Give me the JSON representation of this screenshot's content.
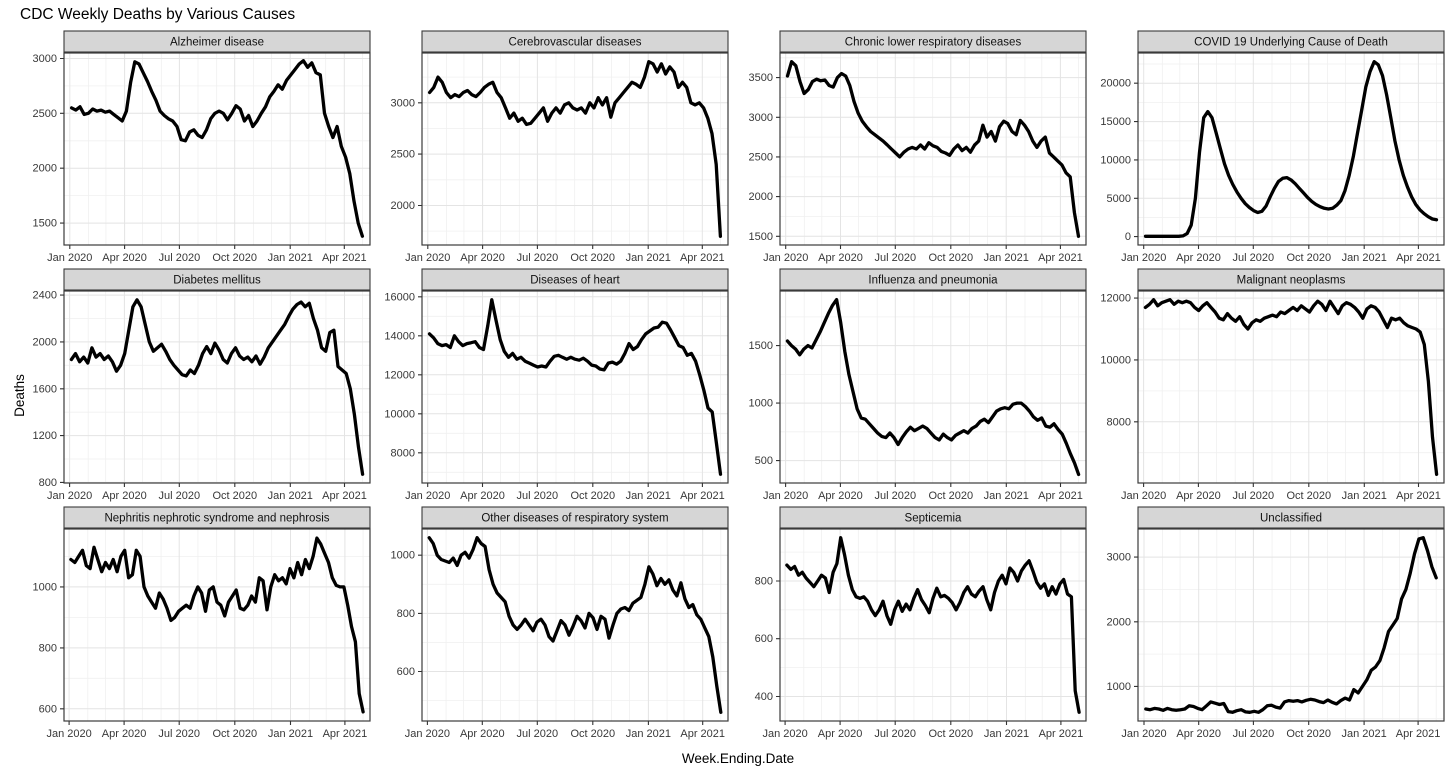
{
  "page_title": "CDC Weekly Deaths by Various Causes",
  "axes": {
    "x_title": "Week.Ending.Date",
    "y_title": "Deaths",
    "x_tick_labels": [
      "Jan 2020",
      "Apr 2020",
      "Jul 2020",
      "Oct 2020",
      "Jan 2021",
      "Apr 2021"
    ]
  },
  "style": {
    "line_color": "#000000",
    "strip_bg": "#d6d6d6",
    "panel_border": "#3b3b3b",
    "grid_major": "#e4e4e4",
    "grid_minor": "#f0f0f0",
    "tick_color": "#333333"
  },
  "chart_data": {
    "type": "line",
    "title": "CDC Weekly Deaths by Various Causes",
    "xlabel": "Week.Ending.Date",
    "ylabel": "Deaths",
    "x_unit": "weekly points, Jan 2020 through late Apr 2021",
    "x_tick_labels": [
      "Jan 2020",
      "Apr 2020",
      "Jul 2020",
      "Oct 2020",
      "Jan 2021",
      "Apr 2021"
    ],
    "panels": [
      {
        "title": "Alzheimer disease",
        "yticks": [
          1500,
          2000,
          2500,
          3000
        ],
        "ylim": [
          1300,
          3050
        ],
        "values": [
          2550,
          2530,
          2560,
          2490,
          2500,
          2540,
          2520,
          2530,
          2510,
          2520,
          2490,
          2460,
          2430,
          2520,
          2780,
          2970,
          2950,
          2870,
          2790,
          2700,
          2620,
          2520,
          2480,
          2450,
          2430,
          2380,
          2260,
          2250,
          2330,
          2350,
          2300,
          2280,
          2350,
          2450,
          2500,
          2520,
          2500,
          2440,
          2500,
          2570,
          2540,
          2430,
          2480,
          2380,
          2430,
          2500,
          2560,
          2650,
          2700,
          2760,
          2720,
          2800,
          2850,
          2900,
          2950,
          2980,
          2920,
          2960,
          2870,
          2850,
          2500,
          2380,
          2280,
          2380,
          2200,
          2100,
          1950,
          1700,
          1500,
          1380
        ]
      },
      {
        "title": "Cerebrovascular diseases",
        "yticks": [
          2000,
          2500,
          3000
        ],
        "ylim": [
          1615,
          3485
        ],
        "values": [
          3100,
          3150,
          3250,
          3200,
          3100,
          3050,
          3080,
          3060,
          3100,
          3120,
          3080,
          3060,
          3100,
          3150,
          3180,
          3200,
          3100,
          3050,
          2950,
          2850,
          2900,
          2820,
          2850,
          2790,
          2800,
          2850,
          2900,
          2950,
          2820,
          2900,
          2950,
          2900,
          2980,
          3000,
          2950,
          2930,
          2950,
          2900,
          3000,
          2950,
          3050,
          2980,
          3050,
          2860,
          3000,
          3050,
          3100,
          3150,
          3200,
          3180,
          3150,
          3250,
          3400,
          3380,
          3300,
          3380,
          3280,
          3350,
          3300,
          3150,
          3200,
          3150,
          3000,
          2980,
          3000,
          2950,
          2850,
          2700,
          2400,
          1700
        ]
      },
      {
        "title": "Chronic lower respiratory diseases",
        "yticks": [
          1500,
          2000,
          2500,
          3000,
          3500
        ],
        "ylim": [
          1390,
          3810
        ],
        "values": [
          3520,
          3700,
          3650,
          3450,
          3300,
          3350,
          3450,
          3480,
          3460,
          3470,
          3400,
          3380,
          3500,
          3550,
          3520,
          3400,
          3200,
          3050,
          2950,
          2880,
          2820,
          2780,
          2740,
          2700,
          2650,
          2600,
          2550,
          2500,
          2560,
          2600,
          2620,
          2600,
          2650,
          2600,
          2680,
          2640,
          2620,
          2570,
          2550,
          2520,
          2600,
          2650,
          2580,
          2620,
          2560,
          2650,
          2700,
          2900,
          2750,
          2820,
          2700,
          2880,
          2950,
          2920,
          2820,
          2780,
          2960,
          2900,
          2820,
          2700,
          2620,
          2700,
          2750,
          2550,
          2500,
          2450,
          2400,
          2300,
          2250,
          1800,
          1500
        ]
      },
      {
        "title": "COVID 19 Underlying Cause of Death",
        "yticks": [
          0,
          5000,
          10000,
          15000,
          20000
        ],
        "ylim": [
          -1090,
          23940
        ],
        "values": [
          50,
          50,
          50,
          50,
          50,
          50,
          50,
          50,
          50,
          100,
          400,
          1500,
          5000,
          11000,
          15500,
          16300,
          15500,
          13500,
          11500,
          9500,
          8000,
          6800,
          5800,
          5000,
          4300,
          3800,
          3400,
          3150,
          3300,
          4000,
          5200,
          6300,
          7200,
          7600,
          7700,
          7400,
          6900,
          6300,
          5700,
          5100,
          4600,
          4200,
          3900,
          3700,
          3600,
          3700,
          4100,
          4700,
          6000,
          8000,
          10500,
          13500,
          16500,
          19500,
          21500,
          22800,
          22400,
          21000,
          18500,
          15500,
          12500,
          10000,
          8000,
          6500,
          5200,
          4200,
          3500,
          3000,
          2600,
          2300,
          2200
        ]
      },
      {
        "title": "Diabetes mellitus",
        "yticks": [
          800,
          1200,
          1600,
          2000,
          2400
        ],
        "ylim": [
          795,
          2435
        ],
        "values": [
          1850,
          1900,
          1830,
          1870,
          1820,
          1950,
          1870,
          1900,
          1850,
          1880,
          1830,
          1750,
          1800,
          1900,
          2100,
          2300,
          2360,
          2300,
          2150,
          2000,
          1920,
          1950,
          1980,
          1920,
          1850,
          1800,
          1760,
          1720,
          1710,
          1760,
          1730,
          1800,
          1900,
          1960,
          1900,
          1990,
          1930,
          1850,
          1820,
          1900,
          1950,
          1880,
          1850,
          1870,
          1830,
          1880,
          1810,
          1870,
          1950,
          2000,
          2050,
          2100,
          2150,
          2220,
          2280,
          2320,
          2340,
          2300,
          2330,
          2200,
          2100,
          1950,
          1920,
          2080,
          2100,
          1790,
          1760,
          1730,
          1600,
          1380,
          1100,
          870
        ]
      },
      {
        "title": "Diseases of heart",
        "yticks": [
          8000,
          10000,
          12000,
          14000,
          16000
        ],
        "ylim": [
          6450,
          16300
        ],
        "values": [
          14100,
          13900,
          13600,
          13500,
          13550,
          13400,
          14000,
          13700,
          13500,
          13600,
          13650,
          13700,
          13400,
          13300,
          14500,
          15850,
          14800,
          13800,
          13200,
          12900,
          13100,
          12800,
          12900,
          12700,
          12600,
          12500,
          12400,
          12450,
          12400,
          12700,
          12950,
          13000,
          12900,
          12800,
          12900,
          12800,
          12750,
          12850,
          12700,
          12500,
          12450,
          12300,
          12250,
          12600,
          12650,
          12550,
          12700,
          13100,
          13600,
          13300,
          13450,
          13800,
          14100,
          14250,
          14400,
          14450,
          14700,
          14650,
          14300,
          13900,
          13500,
          13400,
          13000,
          13100,
          12700,
          12000,
          11200,
          10300,
          10100,
          8500,
          6900
        ]
      },
      {
        "title": "Influenza and pneumonia",
        "yticks": [
          500,
          1000,
          1500
        ],
        "ylim": [
          305,
          1975
        ],
        "values": [
          1540,
          1500,
          1470,
          1420,
          1470,
          1500,
          1480,
          1550,
          1620,
          1700,
          1780,
          1850,
          1900,
          1700,
          1450,
          1250,
          1100,
          950,
          870,
          860,
          820,
          780,
          740,
          710,
          700,
          740,
          700,
          640,
          700,
          750,
          790,
          760,
          780,
          800,
          780,
          740,
          700,
          680,
          730,
          700,
          680,
          720,
          740,
          760,
          740,
          780,
          800,
          840,
          860,
          830,
          880,
          930,
          950,
          960,
          950,
          990,
          1000,
          1000,
          970,
          930,
          880,
          850,
          870,
          800,
          790,
          820,
          770,
          730,
          650,
          560,
          480,
          380
        ]
      },
      {
        "title": "Malignant neoplasms",
        "yticks": [
          8000,
          10000,
          12000
        ],
        "ylim": [
          6020,
          12230
        ],
        "values": [
          11700,
          11800,
          11950,
          11750,
          11850,
          11900,
          11950,
          11800,
          11900,
          11850,
          11900,
          11850,
          11700,
          11600,
          11750,
          11850,
          11700,
          11550,
          11350,
          11300,
          11500,
          11350,
          11250,
          11400,
          11150,
          11000,
          11200,
          11300,
          11250,
          11350,
          11400,
          11450,
          11400,
          11550,
          11500,
          11600,
          11700,
          11600,
          11750,
          11650,
          11550,
          11750,
          11900,
          11800,
          11600,
          11900,
          11700,
          11500,
          11750,
          11850,
          11800,
          11700,
          11550,
          11350,
          11650,
          11750,
          11700,
          11550,
          11300,
          11050,
          11350,
          11300,
          11350,
          11200,
          11100,
          11050,
          11000,
          10900,
          10500,
          9300,
          7500,
          6300
        ]
      },
      {
        "title": "Nephritis nephrotic syndrome and nephrosis",
        "yticks": [
          600,
          800,
          1000
        ],
        "ylim": [
          560,
          1190
        ],
        "values": [
          1090,
          1080,
          1100,
          1120,
          1070,
          1060,
          1130,
          1090,
          1050,
          1080,
          1060,
          1090,
          1050,
          1100,
          1120,
          1030,
          1040,
          1120,
          1100,
          1000,
          970,
          950,
          930,
          980,
          960,
          930,
          890,
          900,
          920,
          930,
          940,
          930,
          970,
          1000,
          980,
          920,
          990,
          1000,
          950,
          940,
          905,
          950,
          970,
          990,
          930,
          925,
          940,
          970,
          950,
          1030,
          1020,
          925,
          1000,
          1040,
          1020,
          1030,
          1010,
          1060,
          1030,
          1080,
          1040,
          1090,
          1060,
          1100,
          1160,
          1140,
          1110,
          1080,
          1030,
          1005,
          1000,
          1000,
          940,
          870,
          820,
          650,
          590
        ]
      },
      {
        "title": "Other diseases of respiratory system",
        "yticks": [
          600,
          800,
          1000
        ],
        "ylim": [
          430,
          1090
        ],
        "values": [
          1060,
          1040,
          1000,
          985,
          980,
          975,
          990,
          965,
          1000,
          1010,
          990,
          1020,
          1060,
          1040,
          1030,
          950,
          900,
          870,
          855,
          840,
          790,
          760,
          745,
          760,
          780,
          760,
          740,
          770,
          780,
          760,
          720,
          705,
          740,
          775,
          760,
          725,
          755,
          790,
          775,
          750,
          800,
          785,
          745,
          790,
          780,
          715,
          760,
          800,
          815,
          820,
          810,
          835,
          845,
          855,
          900,
          960,
          935,
          895,
          920,
          900,
          915,
          880,
          860,
          905,
          850,
          820,
          830,
          795,
          780,
          750,
          720,
          650,
          550,
          460
        ]
      },
      {
        "title": "Septicemia",
        "yticks": [
          400,
          600,
          800
        ],
        "ylim": [
          315,
          980
        ],
        "values": [
          855,
          840,
          850,
          820,
          830,
          810,
          795,
          780,
          800,
          820,
          810,
          760,
          830,
          860,
          950,
          890,
          820,
          770,
          745,
          740,
          745,
          730,
          700,
          680,
          700,
          730,
          680,
          650,
          700,
          730,
          695,
          720,
          700,
          740,
          770,
          735,
          715,
          690,
          740,
          775,
          745,
          750,
          740,
          725,
          700,
          725,
          760,
          780,
          755,
          745,
          765,
          780,
          735,
          700,
          760,
          800,
          820,
          790,
          845,
          830,
          800,
          835,
          855,
          870,
          835,
          795,
          775,
          790,
          750,
          780,
          755,
          790,
          805,
          755,
          745,
          420,
          345
        ]
      },
      {
        "title": "Unclassified",
        "yticks": [
          1000,
          2000,
          3000
        ],
        "ylim": [
          465,
          3435
        ],
        "values": [
          650,
          640,
          660,
          650,
          630,
          660,
          640,
          630,
          640,
          650,
          700,
          690,
          660,
          640,
          700,
          760,
          740,
          720,
          735,
          610,
          600,
          625,
          640,
          605,
          600,
          615,
          600,
          640,
          700,
          710,
          680,
          665,
          760,
          780,
          770,
          780,
          760,
          785,
          800,
          790,
          765,
          750,
          790,
          755,
          730,
          780,
          820,
          790,
          950,
          900,
          1000,
          1100,
          1250,
          1300,
          1400,
          1600,
          1850,
          1950,
          2050,
          2350,
          2500,
          2750,
          3050,
          3280,
          3300,
          3100,
          2850,
          2680
        ]
      }
    ]
  }
}
